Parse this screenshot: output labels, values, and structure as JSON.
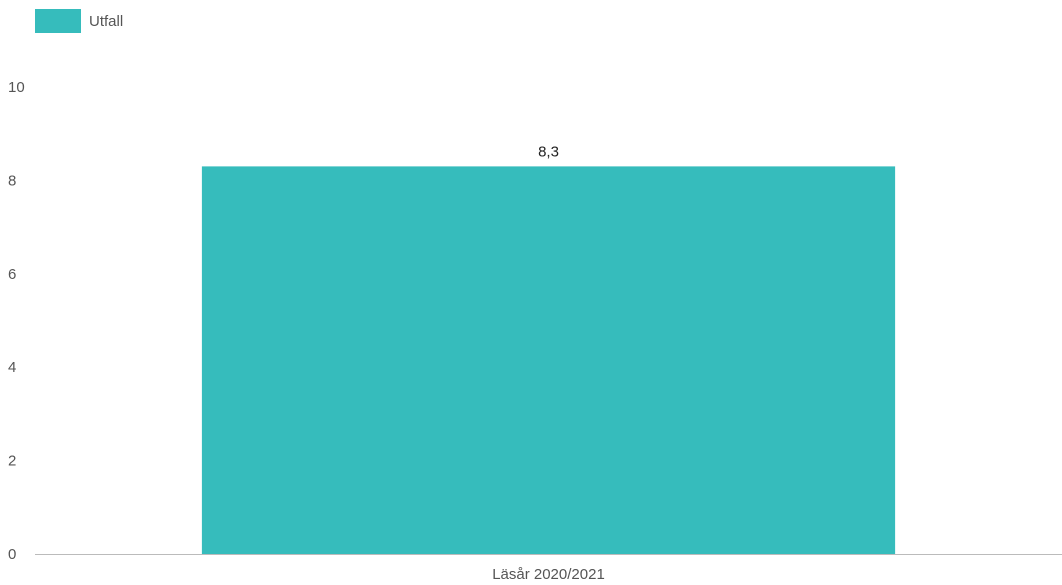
{
  "chart_data": {
    "type": "bar",
    "categories": [
      "Läsår 2020/2021"
    ],
    "series": [
      {
        "name": "Utfall",
        "values": [
          8.3
        ],
        "color": "#36BCBC"
      }
    ],
    "data_labels": [
      "8,3"
    ],
    "y_ticks": [
      "0",
      "2",
      "4",
      "6",
      "8",
      "10"
    ],
    "ylim": [
      0,
      10
    ],
    "xlabel": "",
    "ylabel": "",
    "legend_position": "top-left",
    "grid": false
  }
}
